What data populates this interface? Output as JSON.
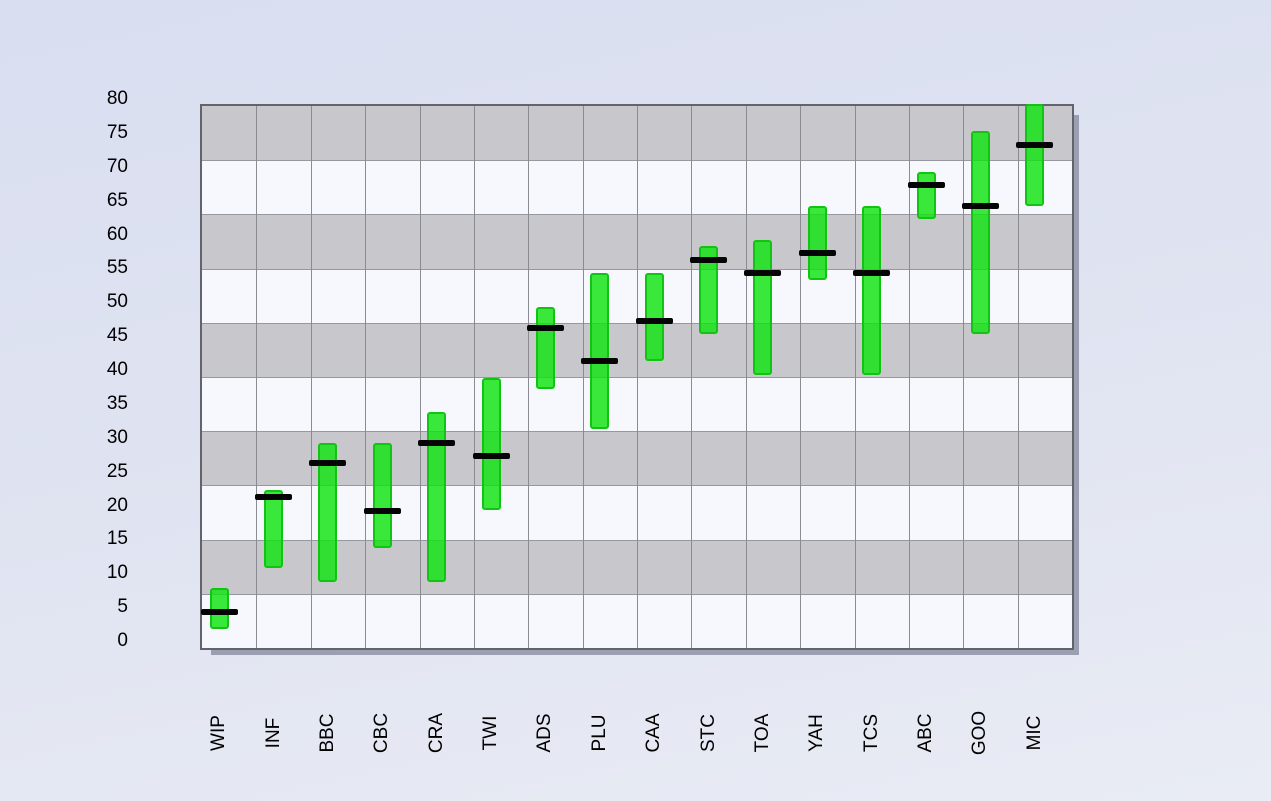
{
  "chart_data": {
    "type": "stock-hilo-bar",
    "title": "",
    "xlabel": "",
    "ylabel": "",
    "categories": [
      "WIP",
      "INF",
      "BBC",
      "CBC",
      "CRA",
      "TWI",
      "ADS",
      "PLU",
      "CAA",
      "STC",
      "TOA",
      "YAH",
      "TCS",
      "ABC",
      "GOO",
      "MIC"
    ],
    "series": [
      {
        "name": "Low",
        "values": [
          2.5,
          11.5,
          9.5,
          14.5,
          9.5,
          20,
          38,
          32,
          42,
          46,
          40,
          54,
          40,
          63,
          46,
          65
        ]
      },
      {
        "name": "High",
        "values": [
          8.5,
          23,
          30,
          30,
          34.5,
          39.5,
          50,
          55,
          55,
          59,
          60,
          65,
          65,
          70,
          76,
          80
        ]
      },
      {
        "name": "Close",
        "values": [
          5,
          22,
          27,
          20,
          30,
          28,
          47,
          42,
          48,
          57,
          55,
          58,
          55,
          68,
          65,
          74
        ]
      }
    ],
    "ylim": [
      0,
      80
    ],
    "ytick_step": 5,
    "y_tick_labels": [
      "0",
      "5",
      "10",
      "15",
      "20",
      "25",
      "30",
      "35",
      "40",
      "45",
      "50",
      "55",
      "60",
      "65",
      "70",
      "75",
      "80"
    ],
    "band_step": 8,
    "grid": "on",
    "legend": "none",
    "colors": {
      "bar_fill": "#10e410",
      "bar_border": "#12c412",
      "close_marker": "#040404",
      "band_gray": "#c8c8cc",
      "band_white": "#f7f8fd",
      "gridline": "#8b8b94",
      "wall_border": "#63636c",
      "background_top": "#d9def1",
      "background_bottom": "#e9ecf4"
    }
  }
}
